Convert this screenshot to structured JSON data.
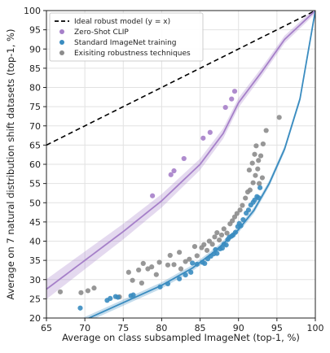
{
  "chart_data": {
    "type": "scatter",
    "xlabel": "Average on class subsampled ImageNet (top-1, %)",
    "ylabel": "Average on 7 natural distribution shift datasets (top-1, %)",
    "xlim": [
      65,
      100
    ],
    "ylim": [
      20,
      100
    ],
    "xticks": [
      "65",
      "70",
      "75",
      "80",
      "85",
      "90",
      "95",
      "100"
    ],
    "yticks": [
      "20",
      "25",
      "30",
      "35",
      "40",
      "45",
      "50",
      "55",
      "60",
      "65",
      "70",
      "75",
      "80",
      "85",
      "90",
      "95",
      "100"
    ],
    "grid": true,
    "legend_position": "top-left",
    "series": [
      {
        "name": "Ideal robust model (y = x)",
        "kind": "line",
        "style": "dashed",
        "color": "#000000",
        "points": [
          [
            65,
            65
          ],
          [
            100,
            100
          ]
        ]
      },
      {
        "name": "Zero-Shot CLIP",
        "kind": "scatter",
        "color": "#a680c9",
        "fit": [
          [
            65,
            27.5
          ],
          [
            70,
            35
          ],
          [
            75,
            42.5
          ],
          [
            80,
            50.5
          ],
          [
            85,
            60
          ],
          [
            88,
            68
          ],
          [
            90,
            76
          ],
          [
            93,
            84
          ],
          [
            96,
            92.5
          ],
          [
            100,
            100
          ]
        ],
        "band": [
          2.6,
          1.6,
          0.8
        ],
        "points": [
          [
            78.8,
            51.8
          ],
          [
            81.2,
            57.3
          ],
          [
            81.6,
            58.3
          ],
          [
            82.9,
            61.5
          ],
          [
            85.4,
            66.8
          ],
          [
            86.3,
            68.3
          ],
          [
            88.3,
            74.8
          ],
          [
            89.1,
            77
          ],
          [
            89.5,
            79
          ]
        ]
      },
      {
        "name": "Standard ImageNet training",
        "kind": "scatter",
        "color": "#3a8cc0",
        "fit": [
          [
            65,
            14
          ],
          [
            70,
            19.5
          ],
          [
            75,
            24
          ],
          [
            80,
            28.5
          ],
          [
            84,
            33
          ],
          [
            87,
            37.5
          ],
          [
            90,
            43
          ],
          [
            92,
            48
          ],
          [
            94,
            55
          ],
          [
            96,
            64
          ],
          [
            98,
            77
          ],
          [
            100,
            100
          ]
        ],
        "band": [
          0.8,
          0.8,
          0.8
        ],
        "points": [
          [
            69.4,
            22.6
          ],
          [
            72.9,
            24.6
          ],
          [
            73.3,
            25.1
          ],
          [
            74.0,
            25.6
          ],
          [
            74.3,
            25.4
          ],
          [
            76.0,
            25.8
          ],
          [
            76.3,
            26.0
          ],
          [
            79.8,
            28.1
          ],
          [
            80.8,
            28.9
          ],
          [
            82.3,
            30.2
          ],
          [
            83.1,
            31.2
          ],
          [
            83.8,
            31.9
          ],
          [
            84.0,
            34.3
          ],
          [
            84.6,
            34.0
          ],
          [
            85.3,
            34.5
          ],
          [
            85.6,
            34.2
          ],
          [
            86.0,
            35.4
          ],
          [
            86.4,
            36.1
          ],
          [
            86.8,
            36.7
          ],
          [
            87.0,
            37.8
          ],
          [
            87.2,
            36.8
          ],
          [
            87.6,
            38.0
          ],
          [
            87.9,
            38.2
          ],
          [
            88.1,
            39.2
          ],
          [
            88.4,
            39.0
          ],
          [
            88.6,
            40.4
          ],
          [
            88.8,
            41.0
          ],
          [
            89.1,
            41.3
          ],
          [
            89.3,
            41.6
          ],
          [
            89.6,
            42.3
          ],
          [
            89.9,
            43.8
          ],
          [
            90.1,
            44.6
          ],
          [
            90.3,
            44.0
          ],
          [
            90.6,
            45.6
          ],
          [
            91.0,
            47.3
          ],
          [
            91.3,
            48.1
          ],
          [
            91.6,
            49.4
          ],
          [
            91.9,
            50.1
          ],
          [
            92.1,
            50.7
          ],
          [
            92.4,
            51.6
          ],
          [
            92.6,
            51.3
          ],
          [
            92.8,
            53.9
          ]
        ]
      },
      {
        "name": "Exisiting robustness techniques",
        "kind": "scatter",
        "color": "#8c8c8c",
        "points": [
          [
            66.8,
            26.8
          ],
          [
            69.5,
            26.6
          ],
          [
            70.4,
            27.1
          ],
          [
            71.2,
            27.8
          ],
          [
            74.5,
            25.5
          ],
          [
            75.7,
            31.9
          ],
          [
            76.2,
            29.8
          ],
          [
            77.0,
            32.5
          ],
          [
            77.6,
            34.2
          ],
          [
            77.4,
            29.1
          ],
          [
            78.2,
            32.8
          ],
          [
            78.7,
            33.3
          ],
          [
            79.3,
            31.3
          ],
          [
            79.7,
            34.5
          ],
          [
            80.8,
            33.8
          ],
          [
            81.1,
            36.3
          ],
          [
            81.6,
            33.9
          ],
          [
            82.5,
            32.8
          ],
          [
            82.3,
            37.1
          ],
          [
            83.1,
            34.7
          ],
          [
            83.6,
            35.3
          ],
          [
            84.3,
            38.6
          ],
          [
            84.6,
            36.2
          ],
          [
            85.2,
            38.3
          ],
          [
            85.5,
            39.1
          ],
          [
            85.9,
            37.6
          ],
          [
            86.2,
            40.0
          ],
          [
            86.6,
            39.2
          ],
          [
            86.9,
            41.1
          ],
          [
            87.2,
            42.2
          ],
          [
            87.5,
            40.3
          ],
          [
            87.8,
            41.6
          ],
          [
            88.1,
            43.2
          ],
          [
            88.5,
            42.1
          ],
          [
            88.9,
            44.5
          ],
          [
            89.2,
            45.3
          ],
          [
            89.5,
            46.3
          ],
          [
            89.8,
            47.2
          ],
          [
            90.2,
            48.1
          ],
          [
            90.5,
            49.3
          ],
          [
            90.9,
            51.2
          ],
          [
            91.2,
            52.8
          ],
          [
            91.5,
            53.3
          ],
          [
            91.9,
            55.2
          ],
          [
            92.2,
            57.1
          ],
          [
            92.5,
            58.8
          ],
          [
            92.6,
            61.0
          ],
          [
            92.9,
            62.2
          ],
          [
            93.2,
            65.3
          ],
          [
            93.6,
            68.8
          ],
          [
            95.3,
            72.2
          ],
          [
            92.3,
            64.8
          ],
          [
            92.1,
            62.6
          ],
          [
            91.8,
            60.3
          ],
          [
            91.4,
            58.5
          ],
          [
            93.1,
            56.5
          ],
          [
            92.7,
            55.0
          ]
        ]
      }
    ]
  }
}
